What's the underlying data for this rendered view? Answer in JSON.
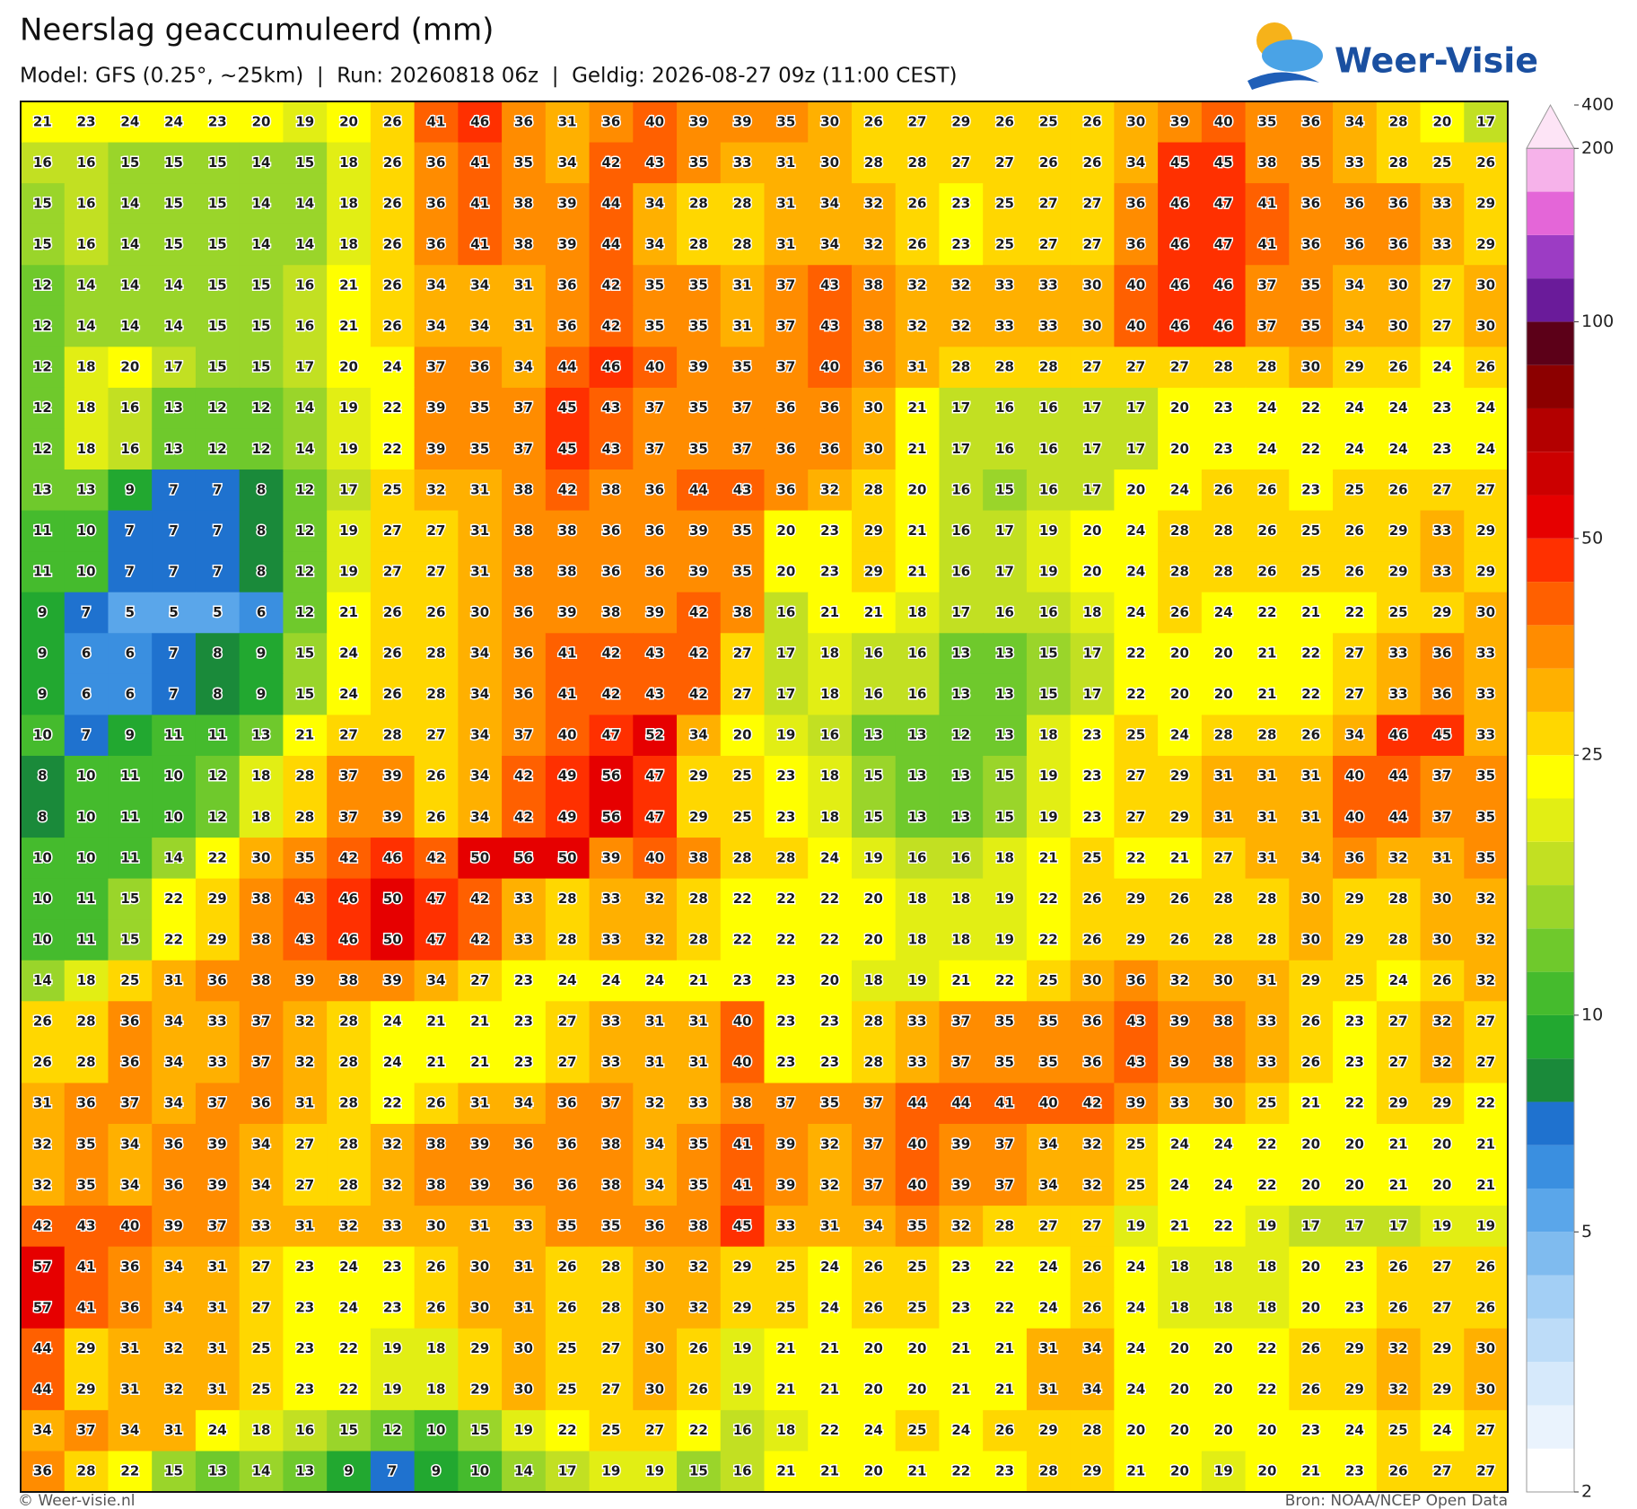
{
  "header": {
    "title": "Neerslag geaccumuleerd (mm)",
    "subtitle": "Model: GFS (0.25°, ~25km)  |  Run: 20260818 06z  |  Geldig: 2026-08-27 09z (11:00 CEST)"
  },
  "logo": {
    "text": "Weer-Visie"
  },
  "map": {
    "grid": [
      [
        21,
        23,
        24,
        24,
        23,
        20,
        19,
        20,
        26,
        41,
        46,
        36,
        31,
        36,
        40,
        39,
        39,
        35,
        30,
        26,
        27,
        29,
        26,
        25,
        26,
        30,
        39,
        40,
        35,
        36,
        34,
        28,
        20,
        17
      ],
      [
        16,
        16,
        15,
        15,
        15,
        14,
        15,
        18,
        26,
        36,
        41,
        35,
        34,
        42,
        43,
        35,
        33,
        31,
        30,
        28,
        28,
        27,
        27,
        26,
        26,
        34,
        45,
        45,
        38,
        35,
        33,
        28,
        25,
        26
      ],
      [
        15,
        16,
        14,
        15,
        15,
        14,
        14,
        18,
        26,
        36,
        41,
        38,
        39,
        44,
        34,
        28,
        28,
        31,
        34,
        32,
        26,
        23,
        25,
        27,
        27,
        36,
        46,
        47,
        41,
        36,
        36,
        36,
        33,
        29
      ],
      [
        15,
        16,
        14,
        15,
        15,
        14,
        14,
        18,
        26,
        36,
        41,
        38,
        39,
        44,
        34,
        28,
        28,
        31,
        34,
        32,
        26,
        23,
        25,
        27,
        27,
        36,
        46,
        47,
        41,
        36,
        36,
        36,
        33,
        29
      ],
      [
        12,
        14,
        14,
        14,
        15,
        15,
        16,
        21,
        26,
        34,
        34,
        31,
        36,
        42,
        35,
        35,
        31,
        37,
        43,
        38,
        32,
        32,
        33,
        33,
        30,
        40,
        46,
        46,
        37,
        35,
        34,
        30,
        27,
        30
      ],
      [
        12,
        14,
        14,
        14,
        15,
        15,
        16,
        21,
        26,
        34,
        34,
        31,
        36,
        42,
        35,
        35,
        31,
        37,
        43,
        38,
        32,
        32,
        33,
        33,
        30,
        40,
        46,
        46,
        37,
        35,
        34,
        30,
        27,
        30
      ],
      [
        12,
        18,
        20,
        17,
        15,
        15,
        17,
        20,
        24,
        37,
        36,
        34,
        44,
        46,
        40,
        39,
        35,
        37,
        40,
        36,
        31,
        28,
        28,
        28,
        27,
        27,
        27,
        28,
        28,
        30,
        29,
        26,
        24,
        26
      ],
      [
        12,
        18,
        16,
        13,
        12,
        12,
        14,
        19,
        22,
        39,
        35,
        37,
        45,
        43,
        37,
        35,
        37,
        36,
        36,
        30,
        21,
        17,
        16,
        16,
        17,
        17,
        20,
        23,
        24,
        22,
        24,
        24,
        23,
        24
      ],
      [
        12,
        18,
        16,
        13,
        12,
        12,
        14,
        19,
        22,
        39,
        35,
        37,
        45,
        43,
        37,
        35,
        37,
        36,
        36,
        30,
        21,
        17,
        16,
        16,
        17,
        17,
        20,
        23,
        24,
        22,
        24,
        24,
        23,
        24
      ],
      [
        13,
        13,
        9,
        7,
        7,
        8,
        12,
        17,
        25,
        32,
        31,
        38,
        42,
        38,
        36,
        44,
        43,
        36,
        32,
        28,
        20,
        16,
        15,
        16,
        17,
        20,
        24,
        26,
        26,
        23,
        25,
        26,
        27,
        27
      ],
      [
        11,
        10,
        7,
        7,
        7,
        8,
        12,
        19,
        27,
        27,
        31,
        38,
        38,
        36,
        36,
        39,
        35,
        20,
        23,
        29,
        21,
        16,
        17,
        19,
        20,
        24,
        28,
        28,
        26,
        25,
        26,
        29,
        33,
        29
      ],
      [
        11,
        10,
        7,
        7,
        7,
        8,
        12,
        19,
        27,
        27,
        31,
        38,
        38,
        36,
        36,
        39,
        35,
        20,
        23,
        29,
        21,
        16,
        17,
        19,
        20,
        24,
        28,
        28,
        26,
        25,
        26,
        29,
        33,
        29
      ],
      [
        9,
        7,
        5,
        5,
        5,
        6,
        12,
        21,
        26,
        26,
        30,
        36,
        39,
        38,
        39,
        42,
        38,
        16,
        21,
        21,
        18,
        17,
        16,
        16,
        18,
        24,
        26,
        24,
        22,
        21,
        22,
        25,
        29,
        30
      ],
      [
        9,
        6,
        6,
        7,
        8,
        9,
        15,
        24,
        26,
        28,
        34,
        36,
        41,
        42,
        43,
        42,
        27,
        17,
        18,
        16,
        16,
        13,
        13,
        15,
        17,
        22,
        20,
        20,
        21,
        22,
        27,
        33,
        36,
        33
      ],
      [
        9,
        6,
        6,
        7,
        8,
        9,
        15,
        24,
        26,
        28,
        34,
        36,
        41,
        42,
        43,
        42,
        27,
        17,
        18,
        16,
        16,
        13,
        13,
        15,
        17,
        22,
        20,
        20,
        21,
        22,
        27,
        33,
        36,
        33
      ],
      [
        10,
        7,
        9,
        11,
        11,
        13,
        21,
        27,
        28,
        27,
        34,
        37,
        40,
        47,
        52,
        34,
        20,
        19,
        16,
        13,
        13,
        12,
        13,
        18,
        23,
        25,
        24,
        28,
        28,
        26,
        34,
        46,
        45,
        33
      ],
      [
        8,
        10,
        11,
        10,
        12,
        18,
        28,
        37,
        39,
        26,
        34,
        42,
        49,
        56,
        47,
        29,
        25,
        23,
        18,
        15,
        13,
        13,
        15,
        19,
        23,
        27,
        29,
        31,
        31,
        31,
        40,
        44,
        37,
        35
      ],
      [
        8,
        10,
        11,
        10,
        12,
        18,
        28,
        37,
        39,
        26,
        34,
        42,
        49,
        56,
        47,
        29,
        25,
        23,
        18,
        15,
        13,
        13,
        15,
        19,
        23,
        27,
        29,
        31,
        31,
        31,
        40,
        44,
        37,
        35
      ],
      [
        10,
        10,
        11,
        14,
        22,
        30,
        35,
        42,
        46,
        42,
        50,
        56,
        50,
        39,
        40,
        38,
        28,
        28,
        24,
        19,
        16,
        16,
        18,
        21,
        25,
        22,
        21,
        27,
        31,
        34,
        36,
        32,
        31,
        35
      ],
      [
        10,
        11,
        15,
        22,
        29,
        38,
        43,
        46,
        50,
        47,
        42,
        33,
        28,
        33,
        32,
        28,
        22,
        22,
        22,
        20,
        18,
        18,
        19,
        22,
        26,
        29,
        26,
        28,
        28,
        30,
        29,
        28,
        30,
        32
      ],
      [
        10,
        11,
        15,
        22,
        29,
        38,
        43,
        46,
        50,
        47,
        42,
        33,
        28,
        33,
        32,
        28,
        22,
        22,
        22,
        20,
        18,
        18,
        19,
        22,
        26,
        29,
        26,
        28,
        28,
        30,
        29,
        28,
        30,
        32
      ],
      [
        14,
        18,
        25,
        31,
        36,
        38,
        39,
        38,
        39,
        34,
        27,
        23,
        24,
        24,
        24,
        21,
        23,
        23,
        20,
        18,
        19,
        21,
        22,
        25,
        30,
        36,
        32,
        30,
        31,
        29,
        25,
        24,
        26,
        32
      ],
      [
        26,
        28,
        36,
        34,
        33,
        37,
        32,
        28,
        24,
        21,
        21,
        23,
        27,
        33,
        31,
        31,
        40,
        23,
        23,
        28,
        33,
        37,
        35,
        35,
        36,
        43,
        39,
        38,
        33,
        26,
        23,
        27,
        32,
        27
      ],
      [
        26,
        28,
        36,
        34,
        33,
        37,
        32,
        28,
        24,
        21,
        21,
        23,
        27,
        33,
        31,
        31,
        40,
        23,
        23,
        28,
        33,
        37,
        35,
        35,
        36,
        43,
        39,
        38,
        33,
        26,
        23,
        27,
        32,
        27
      ],
      [
        31,
        36,
        37,
        34,
        37,
        36,
        31,
        28,
        22,
        26,
        31,
        34,
        36,
        37,
        32,
        33,
        38,
        37,
        35,
        37,
        44,
        44,
        41,
        40,
        42,
        39,
        33,
        30,
        25,
        21,
        22,
        29,
        29,
        22
      ],
      [
        32,
        35,
        34,
        36,
        39,
        34,
        27,
        28,
        32,
        38,
        39,
        36,
        36,
        38,
        34,
        35,
        41,
        39,
        32,
        37,
        40,
        39,
        37,
        34,
        32,
        25,
        24,
        24,
        22,
        20,
        20,
        21,
        20,
        21
      ],
      [
        32,
        35,
        34,
        36,
        39,
        34,
        27,
        28,
        32,
        38,
        39,
        36,
        36,
        38,
        34,
        35,
        41,
        39,
        32,
        37,
        40,
        39,
        37,
        34,
        32,
        25,
        24,
        24,
        22,
        20,
        20,
        21,
        20,
        21
      ],
      [
        42,
        43,
        40,
        39,
        37,
        33,
        31,
        32,
        33,
        30,
        31,
        33,
        35,
        35,
        36,
        38,
        45,
        33,
        31,
        34,
        35,
        32,
        28,
        27,
        27,
        19,
        21,
        22,
        19,
        17,
        17,
        17,
        19,
        19
      ],
      [
        57,
        41,
        36,
        34,
        31,
        27,
        23,
        24,
        23,
        26,
        30,
        31,
        26,
        28,
        30,
        32,
        29,
        25,
        24,
        26,
        25,
        23,
        22,
        24,
        26,
        24,
        18,
        18,
        18,
        20,
        23,
        26,
        27,
        26
      ],
      [
        57,
        41,
        36,
        34,
        31,
        27,
        23,
        24,
        23,
        26,
        30,
        31,
        26,
        28,
        30,
        32,
        29,
        25,
        24,
        26,
        25,
        23,
        22,
        24,
        26,
        24,
        18,
        18,
        18,
        20,
        23,
        26,
        27,
        26
      ],
      [
        44,
        29,
        31,
        32,
        31,
        25,
        23,
        22,
        19,
        18,
        29,
        30,
        25,
        27,
        30,
        26,
        19,
        21,
        21,
        20,
        20,
        21,
        21,
        31,
        34,
        24,
        20,
        20,
        22,
        26,
        29,
        32,
        29,
        30
      ],
      [
        44,
        29,
        31,
        32,
        31,
        25,
        23,
        22,
        19,
        18,
        29,
        30,
        25,
        27,
        30,
        26,
        19,
        21,
        21,
        20,
        20,
        21,
        21,
        31,
        34,
        24,
        20,
        20,
        22,
        26,
        29,
        32,
        29,
        30
      ],
      [
        34,
        37,
        34,
        31,
        24,
        18,
        16,
        15,
        12,
        10,
        15,
        19,
        22,
        25,
        27,
        22,
        16,
        18,
        22,
        24,
        25,
        24,
        26,
        29,
        28,
        20,
        20,
        20,
        20,
        23,
        24,
        25,
        24,
        27
      ],
      [
        36,
        28,
        22,
        15,
        13,
        14,
        13,
        9,
        7,
        9,
        10,
        14,
        17,
        19,
        19,
        15,
        16,
        21,
        21,
        20,
        21,
        22,
        23,
        28,
        29,
        21,
        20,
        19,
        20,
        21,
        23,
        26,
        27,
        27
      ]
    ]
  },
  "colorbar": {
    "ticks": [
      400,
      200,
      100,
      50,
      25,
      10,
      5,
      2
    ]
  },
  "footer": {
    "left": "© Weer-visie.nl",
    "right": "Bron: NOAA/NCEP Open Data"
  }
}
